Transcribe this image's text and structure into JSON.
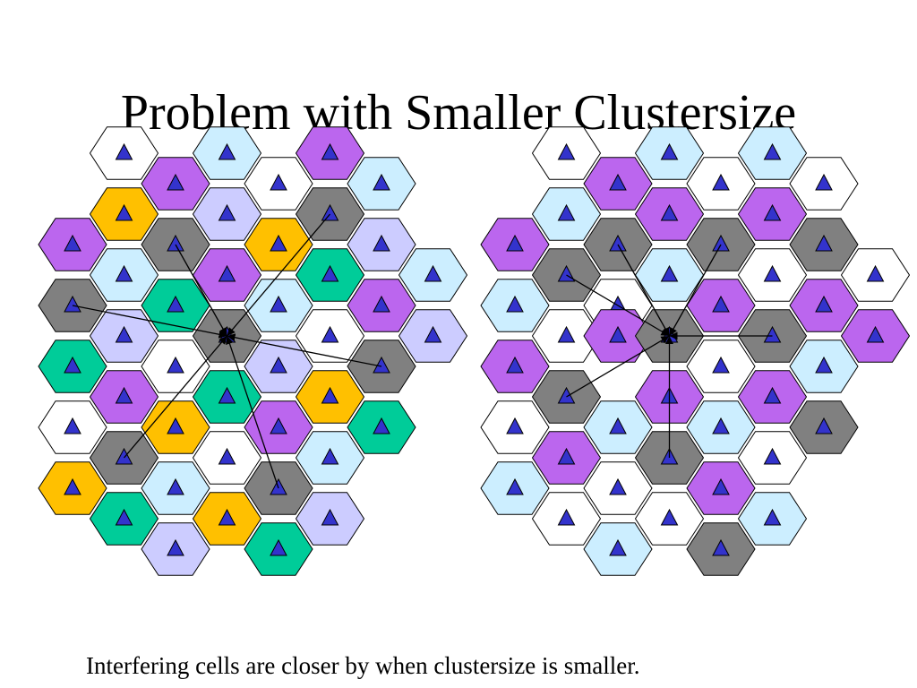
{
  "title": "Problem with Smaller Clustersize",
  "caption": "Interfering cells are closer by when clustersize is smaller.",
  "colors": {
    "purple": "#bb66ee",
    "light_blue": "#cceeff",
    "white": "#ffffff",
    "gray": "#808080",
    "yellow": "#ffc000",
    "green": "#00cc99",
    "lavender": "#ccccff",
    "cell_outline": "#000000",
    "triangle_fill": "#3333cc",
    "arrow": "#000000"
  },
  "icons": {
    "cell_tower": "blue-triangle-icon"
  },
  "diagrams": [
    {
      "name": "small-cluster",
      "cells": [
        [
          "purple",
          0,
          0
        ],
        [
          "white",
          -1,
          0
        ],
        [
          "light_blue",
          1,
          0
        ],
        [
          "white",
          2,
          0
        ],
        [
          "purple",
          3,
          0
        ],
        [
          "light_blue",
          4,
          0
        ],
        [
          "yellow",
          -1,
          1
        ],
        [
          "gray",
          0,
          1
        ],
        [
          "lavender",
          1,
          1
        ],
        [
          "yellow",
          2,
          1
        ],
        [
          "gray",
          3,
          1
        ],
        [
          "lavender",
          4,
          1
        ],
        [
          "purple",
          -2,
          1
        ],
        [
          "light_blue",
          -1,
          2
        ],
        [
          "green",
          0,
          2
        ],
        [
          "purple",
          1,
          2
        ],
        [
          "light_blue",
          2,
          2
        ],
        [
          "green",
          3,
          2
        ],
        [
          "purple",
          4,
          2
        ],
        [
          "gray",
          -2,
          2
        ],
        [
          "lavender",
          -1,
          3
        ],
        [
          "white",
          0,
          3
        ],
        [
          "gray",
          1,
          3
        ],
        [
          "white",
          3,
          3
        ],
        [
          "gray",
          4,
          3
        ],
        [
          "light_blue",
          5,
          2
        ],
        [
          "green",
          -2,
          3
        ],
        [
          "purple",
          -1,
          4
        ],
        [
          "yellow",
          0,
          4
        ],
        [
          "green",
          1,
          4
        ],
        [
          "lavender",
          2,
          3
        ],
        [
          "yellow",
          3,
          4
        ],
        [
          "lavender",
          5,
          3
        ],
        [
          "white",
          -2,
          4
        ],
        [
          "gray",
          -1,
          5
        ],
        [
          "light_blue",
          0,
          5
        ],
        [
          "white",
          1,
          5
        ],
        [
          "purple",
          2,
          4
        ],
        [
          "green",
          4,
          4
        ],
        [
          "yellow",
          -2,
          5
        ],
        [
          "green",
          -1,
          6
        ],
        [
          "lavender",
          0,
          6
        ],
        [
          "yellow",
          1,
          6
        ],
        [
          "gray",
          2,
          5
        ],
        [
          "light_blue",
          3,
          5
        ],
        [
          "green",
          2,
          6
        ],
        [
          "lavender",
          3,
          6
        ]
      ],
      "center": [
        1,
        3
      ],
      "interferers": [
        [
          0,
          1
        ],
        [
          3,
          1
        ],
        [
          -2,
          2
        ],
        [
          4,
          3
        ],
        [
          -1,
          5
        ],
        [
          2,
          5
        ]
      ]
    },
    {
      "name": "large-cluster",
      "cells": [
        [
          "purple",
          0,
          0
        ],
        [
          "white",
          -1,
          0
        ],
        [
          "light_blue",
          1,
          0
        ],
        [
          "white",
          2,
          0
        ],
        [
          "light_blue",
          3,
          0
        ],
        [
          "white",
          4,
          0
        ],
        [
          "light_blue",
          -1,
          1
        ],
        [
          "gray",
          0,
          1
        ],
        [
          "purple",
          1,
          1
        ],
        [
          "gray",
          2,
          1
        ],
        [
          "purple",
          3,
          1
        ],
        [
          "gray",
          4,
          1
        ],
        [
          "purple",
          -2,
          1
        ],
        [
          "gray",
          -1,
          2
        ],
        [
          "white",
          0,
          2
        ],
        [
          "light_blue",
          1,
          2
        ],
        [
          "purple",
          2,
          2
        ],
        [
          "white",
          3,
          2
        ],
        [
          "purple",
          4,
          2
        ],
        [
          "light_blue",
          -2,
          2
        ],
        [
          "white",
          -1,
          3
        ],
        [
          "purple",
          0,
          2.5
        ],
        [
          "gray",
          1,
          3
        ],
        [
          "gray",
          3,
          3
        ],
        [
          "light_blue",
          4,
          3
        ],
        [
          "white",
          5,
          2
        ],
        [
          "purple",
          -2,
          3
        ],
        [
          "gray",
          -1,
          4
        ],
        [
          "light_blue",
          0,
          4
        ],
        [
          "purple",
          1,
          4
        ],
        [
          "white",
          2,
          3
        ],
        [
          "purple",
          3,
          4
        ],
        [
          "purple",
          5,
          3
        ],
        [
          "white",
          -2,
          4
        ],
        [
          "purple",
          -1,
          5
        ],
        [
          "white",
          0,
          5
        ],
        [
          "gray",
          1,
          5
        ],
        [
          "light_blue",
          2,
          4
        ],
        [
          "gray",
          4,
          4
        ],
        [
          "light_blue",
          -2,
          5
        ],
        [
          "white",
          -1,
          6
        ],
        [
          "light_blue",
          0,
          6
        ],
        [
          "white",
          1,
          6
        ],
        [
          "purple",
          2,
          5
        ],
        [
          "white",
          3,
          5
        ],
        [
          "gray",
          2,
          6
        ],
        [
          "light_blue",
          3,
          6
        ]
      ],
      "center": [
        1,
        3
      ],
      "interferers": [
        [
          0,
          1
        ],
        [
          2,
          1
        ],
        [
          -1,
          2
        ],
        [
          3,
          3
        ],
        [
          -1,
          4
        ],
        [
          1,
          5
        ]
      ]
    }
  ]
}
